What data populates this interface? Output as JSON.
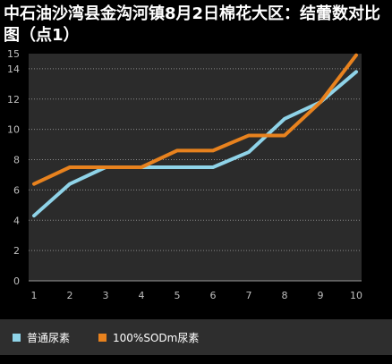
{
  "chart_data": {
    "type": "line",
    "title": "中石油沙湾县金沟河镇8月2日棉花大区：结蕾数对比图（点1）",
    "x": [
      1,
      2,
      3,
      4,
      5,
      6,
      7,
      8,
      9,
      10
    ],
    "ylim": [
      0,
      15
    ],
    "yticks": [
      0,
      2,
      4,
      6,
      8,
      10,
      12,
      14,
      15
    ],
    "grid": true,
    "legend_position": "bottom-left",
    "series": [
      {
        "name": "普通尿素",
        "color": "#8fd3e8",
        "values": [
          4.3,
          6.4,
          7.5,
          7.5,
          7.5,
          7.5,
          8.5,
          10.7,
          11.8,
          13.8
        ]
      },
      {
        "name": "100%SODm尿素",
        "color": "#e8821e",
        "values": [
          6.4,
          7.5,
          7.5,
          7.5,
          8.6,
          8.6,
          9.6,
          9.6,
          11.8,
          14.9
        ]
      }
    ]
  }
}
